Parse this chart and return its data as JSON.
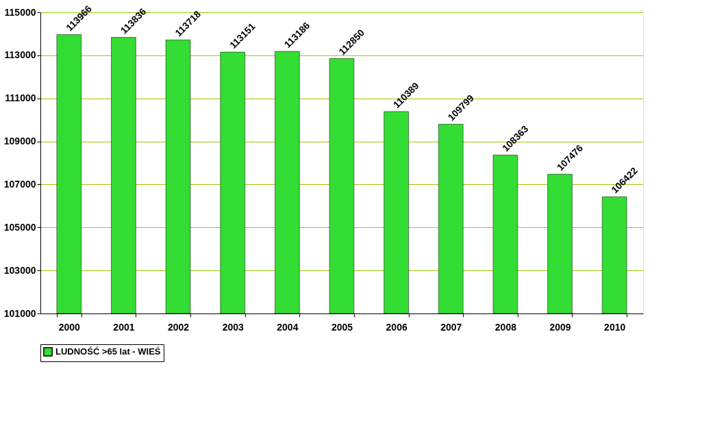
{
  "chart_data": {
    "type": "bar",
    "categories": [
      "2000",
      "2001",
      "2002",
      "2003",
      "2004",
      "2005",
      "2006",
      "2007",
      "2008",
      "2009",
      "2010"
    ],
    "series": [
      {
        "name": "LUDNOŚĆ >65 lat - WIEŚ",
        "color": "#33dd33",
        "values": [
          113966,
          113836,
          113718,
          113151,
          113186,
          112850,
          110389,
          109799,
          108363,
          107476,
          106422
        ]
      }
    ],
    "ylim": [
      101000,
      115000
    ],
    "yticks": [
      101000,
      103000,
      105000,
      107000,
      109000,
      111000,
      113000,
      115000
    ],
    "grid": "y",
    "legend": "bottom",
    "data_labels": true
  }
}
